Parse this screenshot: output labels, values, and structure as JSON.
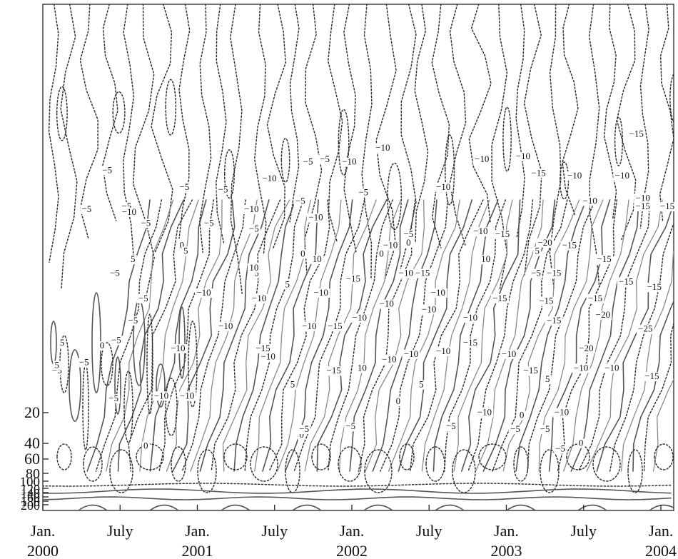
{
  "chart_data": {
    "type": "contour",
    "title": "",
    "xlabel": "",
    "ylabel": "",
    "x_ticks": [
      {
        "line1": "Jan.",
        "line2": "2000",
        "month": 0
      },
      {
        "line1": "July",
        "line2": "",
        "month": 6
      },
      {
        "line1": "Jan.",
        "line2": "2001",
        "month": 12
      },
      {
        "line1": "July",
        "line2": "",
        "month": 18
      },
      {
        "line1": "Jan.",
        "line2": "2002",
        "month": 24
      },
      {
        "line1": "July",
        "line2": "",
        "month": 30
      },
      {
        "line1": "Jan.",
        "line2": "2003",
        "month": 36
      },
      {
        "line1": "July",
        "line2": "",
        "month": 42
      },
      {
        "line1": "Jan.",
        "line2": "2004",
        "month": 48
      }
    ],
    "y_ticks": [
      "20",
      "40",
      "60",
      "80",
      "100",
      "120",
      "140",
      "160",
      "180",
      "200"
    ],
    "xlim_months": [
      0,
      49
    ],
    "contour_labels": [
      {
        "text": "-5",
        "t": 5.0,
        "r": 0.84
      },
      {
        "text": "-5",
        "t": 11.0,
        "r": 0.78
      },
      {
        "text": "-5",
        "t": 14.0,
        "r": 0.77
      },
      {
        "text": "-5",
        "t": 6.5,
        "r": 0.71
      },
      {
        "text": "-10",
        "t": 6.7,
        "r": 0.69
      },
      {
        "text": "-5",
        "t": 3.4,
        "r": 0.7
      },
      {
        "text": "-10",
        "t": 17.6,
        "r": 0.81
      },
      {
        "text": "-10",
        "t": 16.2,
        "r": 0.7
      },
      {
        "text": "-5",
        "t": 20.6,
        "r": 0.87
      },
      {
        "text": "-5",
        "t": 21.9,
        "r": 0.88
      },
      {
        "text": "-10",
        "t": 23.8,
        "r": 0.87
      },
      {
        "text": "-10",
        "t": 26.4,
        "r": 0.92
      },
      {
        "text": "-5",
        "t": 24.9,
        "r": 0.76
      },
      {
        "text": "-5",
        "t": 20.0,
        "r": 0.73
      },
      {
        "text": "-10",
        "t": 21.2,
        "r": 0.67
      },
      {
        "text": "-10",
        "t": 31.1,
        "r": 0.78
      },
      {
        "text": "-10",
        "t": 34.1,
        "r": 0.88
      },
      {
        "text": "-10",
        "t": 37.3,
        "r": 0.89
      },
      {
        "text": "-15",
        "t": 38.5,
        "r": 0.83
      },
      {
        "text": "-10",
        "t": 41.3,
        "r": 0.82
      },
      {
        "text": "-15",
        "t": 46.1,
        "r": 0.97
      },
      {
        "text": "-10",
        "t": 45.0,
        "r": 0.82
      },
      {
        "text": "-10",
        "t": 46.6,
        "r": 0.74
      },
      {
        "text": "-10",
        "t": 42.5,
        "r": 0.73
      },
      {
        "text": "-15",
        "t": 48.5,
        "r": 0.71
      },
      {
        "text": "-15",
        "t": 46.6,
        "r": 0.71
      },
      {
        "text": "-5",
        "t": 8.0,
        "r": 0.65
      },
      {
        "text": "-5",
        "t": 12.9,
        "r": 0.65
      },
      {
        "text": "-5",
        "t": 16.4,
        "r": 0.63
      },
      {
        "text": "0",
        "t": 20.2,
        "r": 0.54
      },
      {
        "text": "0",
        "t": 26.3,
        "r": 0.54
      },
      {
        "text": "-10",
        "t": 27.0,
        "r": 0.57
      },
      {
        "text": "-5",
        "t": 28.4,
        "r": 0.61
      },
      {
        "text": "0",
        "t": 28.4,
        "r": 0.58
      },
      {
        "text": "-10",
        "t": 34.0,
        "r": 0.62
      },
      {
        "text": "-15",
        "t": 35.7,
        "r": 0.61
      },
      {
        "text": "-20",
        "t": 39.0,
        "r": 0.58
      },
      {
        "text": "-15",
        "t": 40.9,
        "r": 0.57
      },
      {
        "text": "-15",
        "t": 43.6,
        "r": 0.52
      },
      {
        "text": "-15",
        "t": 49.0,
        "r": 0.46
      },
      {
        "text": "-10",
        "t": 28.2,
        "r": 0.47
      },
      {
        "text": "-15",
        "t": 29.5,
        "r": 0.47
      },
      {
        "text": "-5",
        "t": 38.3,
        "r": 0.47
      },
      {
        "text": "-15",
        "t": 39.7,
        "r": 0.47
      },
      {
        "text": "-15",
        "t": 45.3,
        "r": 0.44
      },
      {
        "text": "-15",
        "t": 47.5,
        "r": 0.42
      },
      {
        "text": "-10",
        "t": 12.5,
        "r": 0.4
      },
      {
        "text": "-10",
        "t": 16.8,
        "r": 0.38
      },
      {
        "text": "-10",
        "t": 21.6,
        "r": 0.4
      },
      {
        "text": "-15",
        "t": 24.1,
        "r": 0.45
      },
      {
        "text": "-10",
        "t": 26.7,
        "r": 0.36
      },
      {
        "text": "-10",
        "t": 30.7,
        "r": 0.4
      },
      {
        "text": "-15",
        "t": 35.5,
        "r": 0.38
      },
      {
        "text": "-15",
        "t": 39.1,
        "r": 0.37
      },
      {
        "text": "-15",
        "t": 42.9,
        "r": 0.38
      },
      {
        "text": "-10",
        "t": 30.0,
        "r": 0.34
      },
      {
        "text": "-10",
        "t": 33.2,
        "r": 0.31
      },
      {
        "text": "-10",
        "t": 24.6,
        "r": 0.31
      },
      {
        "text": "-10",
        "t": 20.7,
        "r": 0.28
      },
      {
        "text": "-15",
        "t": 39.7,
        "r": 0.3
      },
      {
        "text": "-20",
        "t": 43.5,
        "r": 0.32
      },
      {
        "text": "-25",
        "t": 46.8,
        "r": 0.27
      },
      {
        "text": "-15",
        "t": 22.7,
        "r": 0.28
      },
      {
        "text": "-10",
        "t": 14.2,
        "r": 0.28
      },
      {
        "text": "-15",
        "t": 17.1,
        "r": 0.2
      },
      {
        "text": "-10",
        "t": 17.5,
        "r": 0.17
      },
      {
        "text": "-10",
        "t": 10.5,
        "r": 0.2
      },
      {
        "text": "-10",
        "t": 28.6,
        "r": 0.18
      },
      {
        "text": "-10",
        "t": 31.1,
        "r": 0.19
      },
      {
        "text": "-15",
        "t": 33.2,
        "r": 0.22
      },
      {
        "text": "-10",
        "t": 36.2,
        "r": 0.18
      },
      {
        "text": "-20",
        "t": 42.2,
        "r": 0.2
      },
      {
        "text": "-15",
        "t": 22.6,
        "r": 0.12
      },
      {
        "text": "-10",
        "t": 26.9,
        "r": 0.16
      },
      {
        "text": "-15",
        "t": 37.9,
        "r": 0.12
      },
      {
        "text": "-10",
        "t": 41.8,
        "r": 0.13
      },
      {
        "text": "-10",
        "t": 44.2,
        "r": 0.13
      },
      {
        "text": "-15",
        "t": 47.3,
        "r": 0.1
      },
      {
        "text": "-10",
        "t": 11.2,
        "r": 0.03
      },
      {
        "text": "-10",
        "t": 9.2,
        "r": 0.03
      },
      {
        "text": "-5",
        "t": 5.5,
        "r": 0.02
      },
      {
        "text": "-5",
        "t": 1.1,
        "r": 0.12
      },
      {
        "text": "-5",
        "t": 3.2,
        "r": 0.15
      },
      {
        "text": "-5",
        "t": 5.7,
        "r": 0.23
      },
      {
        "text": "-5",
        "t": 7.0,
        "r": 0.3
      },
      {
        "text": "-5",
        "t": 7.8,
        "r": 0.38
      },
      {
        "text": "-5",
        "t": 5.6,
        "r": 0.47
      },
      {
        "text": "5",
        "t": 7.0,
        "r": 0.52
      },
      {
        "text": "5",
        "t": 1.5,
        "r": 0.22
      },
      {
        "text": "0",
        "t": 4.6,
        "r": 0.21
      },
      {
        "text": "5",
        "t": 1.1,
        "r": 0.14
      },
      {
        "text": "0",
        "t": 10.8,
        "r": 0.57
      },
      {
        "text": "5",
        "t": 11.1,
        "r": 0.55
      },
      {
        "text": "5",
        "t": 16.6,
        "r": 0.47
      },
      {
        "text": "10",
        "t": 16.4,
        "r": 0.49
      },
      {
        "text": "5",
        "t": 19.0,
        "r": 0.43
      },
      {
        "text": "10",
        "t": 21.3,
        "r": 0.52
      },
      {
        "text": "10",
        "t": 34.4,
        "r": 0.52
      },
      {
        "text": "5",
        "t": 38.4,
        "r": 0.55
      },
      {
        "text": "5",
        "t": 19.4,
        "r": 0.07
      },
      {
        "text": "5",
        "t": 29.4,
        "r": 0.07
      },
      {
        "text": "10",
        "t": 24.8,
        "r": 0.13
      },
      {
        "text": "5",
        "t": 39.2,
        "r": 0.09
      },
      {
        "text": "0",
        "t": 37.2,
        "r": -0.04
      },
      {
        "text": "0",
        "t": 27.6,
        "r": 0.01
      },
      {
        "text": "0",
        "t": 20.1,
        "r": -0.11
      },
      {
        "text": "0",
        "t": 8.0,
        "r": -0.15
      },
      {
        "text": "-5",
        "t": 20.3,
        "r": -0.09
      },
      {
        "text": "-5",
        "t": 23.9,
        "r": -0.08
      },
      {
        "text": "-5",
        "t": 31.7,
        "r": -0.08
      },
      {
        "text": "-5",
        "t": 36.7,
        "r": -0.09
      },
      {
        "text": "-5",
        "t": 39.0,
        "r": -0.09
      },
      {
        "text": "-5",
        "t": 40.2,
        "r": -0.16
      },
      {
        "text": "0",
        "t": 41.8,
        "r": -0.14
      },
      {
        "text": "-10",
        "t": 40.3,
        "r": -0.03
      },
      {
        "text": "-10",
        "t": 34.3,
        "r": -0.03
      }
    ]
  }
}
